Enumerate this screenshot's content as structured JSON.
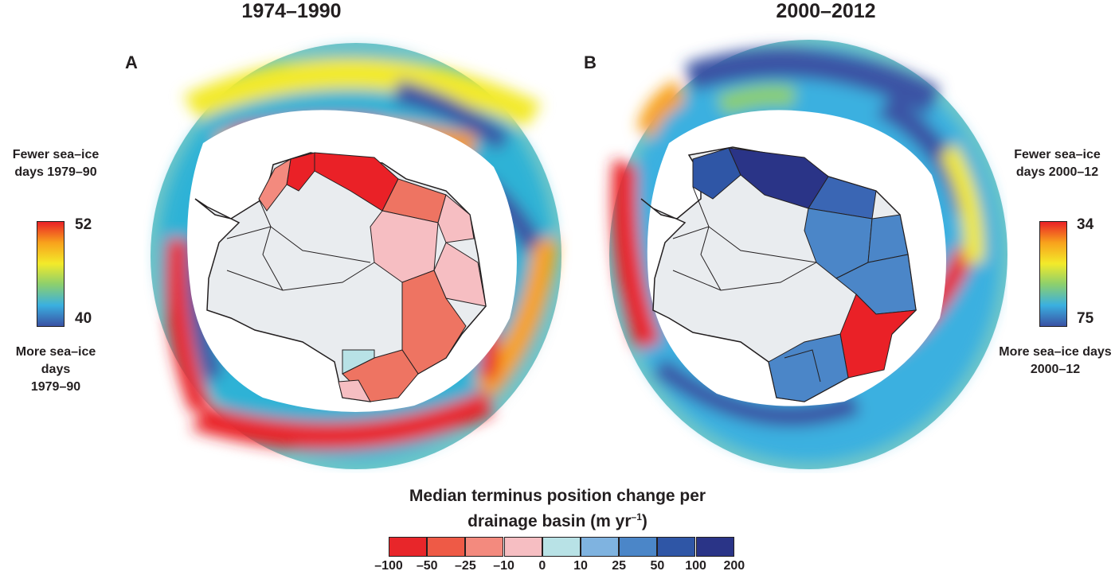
{
  "panels": [
    {
      "title": "1974–1990",
      "letter": "A",
      "colorbar": {
        "top_caption": [
          "Fewer sea–ice",
          "days 1979–90"
        ],
        "max": "52",
        "min": "40",
        "bottom_caption": [
          "More sea–ice days",
          "1979–90"
        ]
      }
    },
    {
      "title": "2000–2012",
      "letter": "B",
      "colorbar": {
        "top_caption": [
          "Fewer sea–ice",
          "days 2000–12"
        ],
        "max": "34",
        "min": "75",
        "bottom_caption": [
          "More sea–ice days",
          "2000–12"
        ]
      }
    }
  ],
  "legend": {
    "title_line1": "Median terminus position change per",
    "title_line2": "drainage basin (m yr",
    "title_sup": "–1",
    "title_end": ")",
    "ticks": [
      "–100",
      "–50",
      "–25",
      "–10",
      "0",
      "10",
      "25",
      "50",
      "100",
      "200"
    ],
    "colors": [
      "#e8262a",
      "#ee5a46",
      "#f38a7e",
      "#f6bec2",
      "#b8e2e6",
      "#7fb3e0",
      "#4b86c8",
      "#2f56a6",
      "#2a3487"
    ]
  },
  "colors": {
    "sea_ice_scale": [
      "#3a52a4",
      "#3ab0e0",
      "#8ccf6e",
      "#f3ea2a",
      "#f8a21c",
      "#ea2127"
    ],
    "ice_sheet": "#e9ecef",
    "basin_outline": "#231f20"
  }
}
